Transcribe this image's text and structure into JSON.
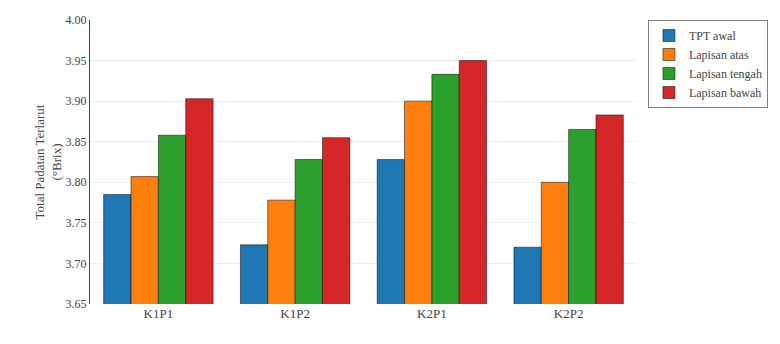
{
  "chart_data": {
    "type": "bar",
    "categories": [
      "K1P1",
      "K1P2",
      "K2P1",
      "K2P2"
    ],
    "series": [
      {
        "name": "TPT awal",
        "values": [
          3.785,
          3.723,
          3.828,
          3.72
        ]
      },
      {
        "name": "Lapisan atas",
        "values": [
          3.807,
          3.778,
          3.9,
          3.8
        ]
      },
      {
        "name": "Lapisan tengah",
        "values": [
          3.858,
          3.828,
          3.933,
          3.865
        ]
      },
      {
        "name": "Lapisan bawah",
        "values": [
          3.903,
          3.855,
          3.95,
          3.883
        ]
      }
    ],
    "ylabel": "Total Padatan Terlarut\n(°Brix)",
    "ylim": [
      3.65,
      4.0
    ],
    "yticks": [
      3.65,
      {
        "value": 3.7,
        "label": "3.70"
      },
      3.75,
      {
        "value": 3.8,
        "label": "3.80"
      },
      3.85,
      {
        "value": 3.9,
        "label": "3.90"
      },
      3.95,
      {
        "value": 4.0,
        "label": "4.00"
      }
    ],
    "grid": true,
    "legend": "right"
  }
}
